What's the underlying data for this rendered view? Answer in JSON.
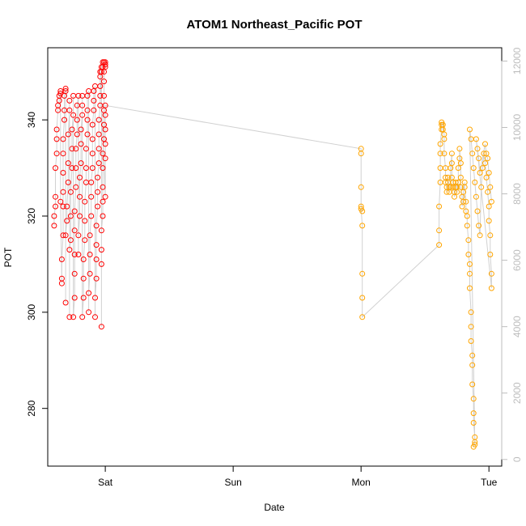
{
  "chart_data": {
    "type": "scatter",
    "title": "ATOM1 Northeast_Pacific POT",
    "xlabel": "Date",
    "ylabel": "POT",
    "xlim": [
      -0.45,
      3.1
    ],
    "ylim": [
      268,
      355
    ],
    "x_ticks": [
      {
        "value": 0,
        "label": "Sat"
      },
      {
        "value": 1,
        "label": "Sun"
      },
      {
        "value": 2,
        "label": "Mon"
      },
      {
        "value": 3,
        "label": "Tue"
      }
    ],
    "y_ticks": [
      280,
      300,
      320,
      340
    ],
    "y2lim": [
      -200,
      12400
    ],
    "y2_ticks": [
      0,
      2000,
      4000,
      6000,
      8000,
      10000,
      12000
    ],
    "grid": false,
    "colors": {
      "series1": "#ff0000",
      "series2": "#ffa500",
      "line": "#bebebe"
    },
    "series": [
      {
        "color": "#ff0000",
        "points": [
          [
            -0.4,
            318
          ],
          [
            -0.4,
            320
          ],
          [
            -0.39,
            322
          ],
          [
            -0.39,
            324
          ],
          [
            -0.39,
            330
          ],
          [
            -0.38,
            333
          ],
          [
            -0.38,
            336
          ],
          [
            -0.38,
            338
          ],
          [
            -0.37,
            342
          ],
          [
            -0.37,
            343
          ],
          [
            -0.36,
            344
          ],
          [
            -0.36,
            345
          ],
          [
            -0.35,
            345.5
          ],
          [
            -0.35,
            346
          ],
          [
            -0.35,
            323
          ],
          [
            -0.34,
            306
          ],
          [
            -0.34,
            307
          ],
          [
            -0.34,
            311
          ],
          [
            -0.33,
            316
          ],
          [
            -0.33,
            322
          ],
          [
            -0.33,
            325
          ],
          [
            -0.33,
            329
          ],
          [
            -0.33,
            333
          ],
          [
            -0.33,
            336
          ],
          [
            -0.32,
            340
          ],
          [
            -0.32,
            342
          ],
          [
            -0.32,
            345
          ],
          [
            -0.31,
            346
          ],
          [
            -0.31,
            346.5
          ],
          [
            -0.31,
            302
          ],
          [
            -0.31,
            316
          ],
          [
            -0.3,
            319
          ],
          [
            -0.3,
            322
          ],
          [
            -0.29,
            327
          ],
          [
            -0.29,
            331
          ],
          [
            -0.29,
            337
          ],
          [
            -0.28,
            342
          ],
          [
            -0.28,
            344
          ],
          [
            -0.28,
            299
          ],
          [
            -0.28,
            313
          ],
          [
            -0.27,
            315
          ],
          [
            -0.27,
            320
          ],
          [
            -0.27,
            325
          ],
          [
            -0.26,
            330
          ],
          [
            -0.26,
            334
          ],
          [
            -0.26,
            338
          ],
          [
            -0.25,
            341
          ],
          [
            -0.25,
            345
          ],
          [
            -0.25,
            299
          ],
          [
            -0.24,
            303
          ],
          [
            -0.24,
            308
          ],
          [
            -0.24,
            312
          ],
          [
            -0.24,
            317
          ],
          [
            -0.24,
            321
          ],
          [
            -0.23,
            326
          ],
          [
            -0.23,
            330
          ],
          [
            -0.23,
            334
          ],
          [
            -0.22,
            337
          ],
          [
            -0.22,
            340
          ],
          [
            -0.22,
            343
          ],
          [
            -0.21,
            345
          ],
          [
            -0.21,
            312
          ],
          [
            -0.21,
            316
          ],
          [
            -0.2,
            320
          ],
          [
            -0.2,
            324
          ],
          [
            -0.2,
            328
          ],
          [
            -0.19,
            331
          ],
          [
            -0.19,
            335
          ],
          [
            -0.19,
            338
          ],
          [
            -0.18,
            341
          ],
          [
            -0.18,
            343
          ],
          [
            -0.18,
            345
          ],
          [
            -0.18,
            299
          ],
          [
            -0.17,
            303
          ],
          [
            -0.17,
            307
          ],
          [
            -0.17,
            311
          ],
          [
            -0.16,
            315
          ],
          [
            -0.16,
            319
          ],
          [
            -0.16,
            323
          ],
          [
            -0.15,
            327
          ],
          [
            -0.15,
            330
          ],
          [
            -0.15,
            334
          ],
          [
            -0.14,
            337
          ],
          [
            -0.14,
            340
          ],
          [
            -0.14,
            342
          ],
          [
            -0.14,
            345
          ],
          [
            -0.13,
            346
          ],
          [
            -0.13,
            300
          ],
          [
            -0.13,
            304
          ],
          [
            -0.12,
            308
          ],
          [
            -0.12,
            312
          ],
          [
            -0.12,
            316
          ],
          [
            -0.11,
            320
          ],
          [
            -0.11,
            324
          ],
          [
            -0.11,
            327
          ],
          [
            -0.1,
            330
          ],
          [
            -0.1,
            333
          ],
          [
            -0.1,
            336
          ],
          [
            -0.1,
            339
          ],
          [
            -0.09,
            342
          ],
          [
            -0.09,
            344
          ],
          [
            -0.09,
            346
          ],
          [
            -0.08,
            347
          ],
          [
            -0.08,
            299
          ],
          [
            -0.08,
            303
          ],
          [
            -0.07,
            307
          ],
          [
            -0.07,
            311
          ],
          [
            -0.07,
            314
          ],
          [
            -0.07,
            318
          ],
          [
            -0.06,
            322
          ],
          [
            -0.06,
            325
          ],
          [
            -0.06,
            328
          ],
          [
            -0.05,
            331
          ],
          [
            -0.05,
            334
          ],
          [
            -0.05,
            337
          ],
          [
            -0.05,
            340
          ],
          [
            -0.04,
            343
          ],
          [
            -0.04,
            345
          ],
          [
            -0.04,
            347
          ],
          [
            -0.04,
            349
          ],
          [
            -0.03,
            350
          ],
          [
            -0.03,
            297
          ],
          [
            -0.03,
            310
          ],
          [
            -0.03,
            313
          ],
          [
            -0.03,
            317
          ],
          [
            -0.02,
            320
          ],
          [
            -0.02,
            323
          ],
          [
            -0.02,
            326
          ],
          [
            -0.02,
            330
          ],
          [
            -0.02,
            333
          ],
          [
            -0.01,
            336
          ],
          [
            -0.01,
            339
          ],
          [
            -0.01,
            342
          ],
          [
            -0.01,
            345
          ],
          [
            -0.01,
            348
          ],
          [
            -0.01,
            350
          ],
          [
            0.0,
            351
          ],
          [
            0.0,
            352
          ],
          [
            0.0,
            351.5
          ],
          [
            -0.02,
            351
          ],
          [
            -0.01,
            352
          ],
          [
            -0.03,
            351
          ],
          [
            -0.02,
            352
          ],
          [
            -0.04,
            350
          ],
          [
            0.0,
            324
          ],
          [
            0.0,
            332
          ],
          [
            0.0,
            335
          ],
          [
            0.0,
            338
          ],
          [
            0.0,
            341
          ],
          [
            0.0,
            343
          ]
        ]
      },
      {
        "color": "#ffa500",
        "points": [
          [
            2.0,
            334
          ],
          [
            2.0,
            333
          ],
          [
            2.0,
            326
          ],
          [
            2.0,
            322
          ],
          [
            2.01,
            321
          ],
          [
            2.0,
            321.5
          ],
          [
            2.01,
            318
          ],
          [
            2.01,
            308
          ],
          [
            2.01,
            303
          ],
          [
            2.01,
            299
          ],
          [
            2.61,
            314
          ],
          [
            2.61,
            317
          ],
          [
            2.61,
            322
          ],
          [
            2.62,
            327
          ],
          [
            2.62,
            330
          ],
          [
            2.62,
            333
          ],
          [
            2.62,
            335
          ],
          [
            2.63,
            338
          ],
          [
            2.63,
            339
          ],
          [
            2.63,
            339.5
          ],
          [
            2.64,
            339
          ],
          [
            2.64,
            338
          ],
          [
            2.65,
            337
          ],
          [
            2.65,
            336
          ],
          [
            2.65,
            333
          ],
          [
            2.66,
            330
          ],
          [
            2.66,
            328
          ],
          [
            2.66,
            327
          ],
          [
            2.67,
            326
          ],
          [
            2.67,
            325
          ],
          [
            2.68,
            327
          ],
          [
            2.68,
            328
          ],
          [
            2.69,
            326
          ],
          [
            2.69,
            325
          ],
          [
            2.7,
            326
          ],
          [
            2.7,
            330
          ],
          [
            2.71,
            333
          ],
          [
            2.71,
            331
          ],
          [
            2.71,
            328
          ],
          [
            2.72,
            327
          ],
          [
            2.72,
            326
          ],
          [
            2.73,
            325
          ],
          [
            2.73,
            324
          ],
          [
            2.74,
            326
          ],
          [
            2.74,
            327
          ],
          [
            2.75,
            326
          ],
          [
            2.75,
            325
          ],
          [
            2.76,
            327
          ],
          [
            2.76,
            330
          ],
          [
            2.77,
            332
          ],
          [
            2.77,
            334
          ],
          [
            2.78,
            331
          ],
          [
            2.78,
            328
          ],
          [
            2.78,
            326
          ],
          [
            2.79,
            324
          ],
          [
            2.79,
            322
          ],
          [
            2.8,
            323
          ],
          [
            2.8,
            325
          ],
          [
            2.81,
            327
          ],
          [
            2.81,
            326
          ],
          [
            2.82,
            323
          ],
          [
            2.82,
            321
          ],
          [
            2.83,
            320
          ],
          [
            2.83,
            318
          ],
          [
            2.84,
            315
          ],
          [
            2.84,
            312
          ],
          [
            2.85,
            310
          ],
          [
            2.85,
            308
          ],
          [
            2.85,
            305
          ],
          [
            2.86,
            300
          ],
          [
            2.86,
            297
          ],
          [
            2.86,
            294
          ],
          [
            2.87,
            291
          ],
          [
            2.87,
            289
          ],
          [
            2.87,
            285
          ],
          [
            2.88,
            282
          ],
          [
            2.88,
            279
          ],
          [
            2.88,
            277
          ],
          [
            2.89,
            274
          ],
          [
            2.89,
            273
          ],
          [
            2.88,
            272
          ],
          [
            2.89,
            272.5
          ],
          [
            2.85,
            338
          ],
          [
            2.86,
            336
          ],
          [
            2.87,
            333
          ],
          [
            2.88,
            330
          ],
          [
            2.89,
            327
          ],
          [
            2.9,
            324
          ],
          [
            2.91,
            321
          ],
          [
            2.92,
            318
          ],
          [
            2.93,
            316
          ],
          [
            2.94,
            326
          ],
          [
            2.95,
            330
          ],
          [
            2.96,
            333
          ],
          [
            2.97,
            331
          ],
          [
            2.98,
            328
          ],
          [
            2.99,
            325
          ],
          [
            3.0,
            322
          ],
          [
            3.0,
            319
          ],
          [
            3.01,
            316
          ],
          [
            3.01,
            312
          ],
          [
            3.02,
            308
          ],
          [
            3.02,
            305
          ],
          [
            2.9,
            336
          ],
          [
            2.91,
            334
          ],
          [
            2.92,
            332
          ],
          [
            2.93,
            329
          ],
          [
            2.97,
            335
          ],
          [
            2.98,
            333
          ],
          [
            2.99,
            332
          ],
          [
            3.0,
            329
          ],
          [
            3.01,
            326
          ],
          [
            3.02,
            323
          ]
        ]
      }
    ]
  }
}
